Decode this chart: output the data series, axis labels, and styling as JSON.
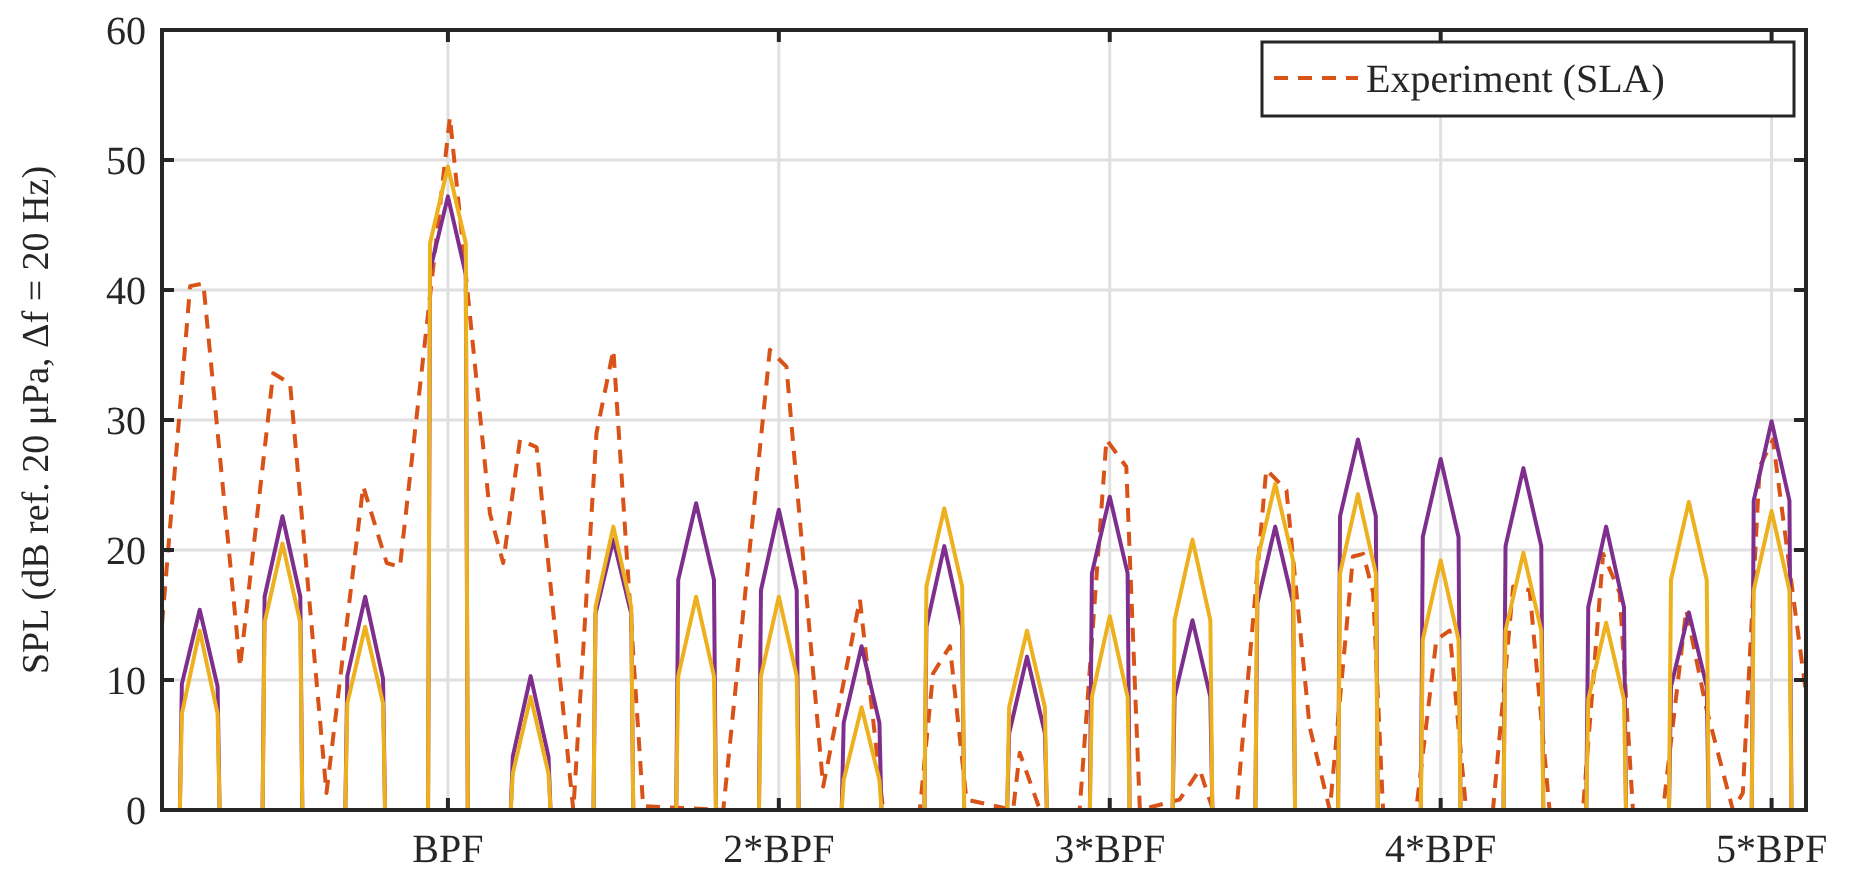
{
  "chart_data": {
    "type": "line",
    "ylabel": "SPL (dB ref. 20 μPa, Δf = 20 Hz)",
    "xlim": [
      0.136,
      5.104
    ],
    "ylim": [
      0,
      60
    ],
    "xticks": [
      {
        "value": 1,
        "label": "BPF"
      },
      {
        "value": 2,
        "label": "2*BPF"
      },
      {
        "value": 3,
        "label": "3*BPF"
      },
      {
        "value": 4,
        "label": "4*BPF"
      },
      {
        "value": 5,
        "label": "5*BPF"
      }
    ],
    "yticks": [
      0,
      10,
      20,
      30,
      40,
      50,
      60
    ],
    "grid": true,
    "legend": "top right",
    "series": [
      {
        "name": "Experiment (SLA)",
        "color": "#d95319",
        "line_style": "dashed",
        "x": [
          0.136,
          0.221,
          0.261,
          0.372,
          0.472,
          0.523,
          0.633,
          0.744,
          0.815,
          0.855,
          1.006,
          1.127,
          1.167,
          1.218,
          1.268,
          1.379,
          1.449,
          1.5,
          1.59,
          1.832,
          1.973,
          2.023,
          2.134,
          2.245,
          2.315,
          2.426,
          2.466,
          2.517,
          2.567,
          2.708,
          2.728,
          2.789,
          2.909,
          2.99,
          3.05,
          3.091,
          3.211,
          3.272,
          3.312,
          3.383,
          3.473,
          3.534,
          3.604,
          3.665,
          3.735,
          3.766,
          3.796,
          3.826,
          3.926,
          3.987,
          4.027,
          4.077,
          4.158,
          4.219,
          4.269,
          4.329,
          4.43,
          4.491,
          4.541,
          4.581,
          4.672,
          4.742,
          4.802,
          4.883,
          4.913,
          4.964,
          5.004,
          5.064,
          5.104
        ],
        "values": [
          14.3,
          40.3,
          40.5,
          11,
          33.6,
          32.8,
          1.3,
          24.9,
          19,
          18.7,
          53.3,
          22.8,
          19,
          28.5,
          27.9,
          0,
          29,
          35.4,
          0.3,
          0,
          35.4,
          34.1,
          1.8,
          16.2,
          0,
          0,
          10.5,
          12.6,
          0.8,
          0,
          4.4,
          0,
          0,
          28.5,
          26.4,
          0,
          0.8,
          3.1,
          0,
          0,
          26.2,
          24.6,
          6.4,
          0,
          19.5,
          19.7,
          16.7,
          0,
          0,
          13.1,
          13.8,
          0,
          0,
          17.2,
          16.9,
          0,
          0,
          19.7,
          16.7,
          0,
          0,
          15.4,
          7.9,
          0,
          1.3,
          26.4,
          28.5,
          16.7,
          9
        ]
      },
      {
        "color": "#7e2f8e",
        "line_style": "solid",
        "x": [
          0.19,
          0.196,
          0.25,
          0.304,
          0.31,
          0.44,
          0.446,
          0.5,
          0.554,
          0.56,
          0.69,
          0.696,
          0.75,
          0.804,
          0.81,
          0.94,
          0.946,
          1,
          1.054,
          1.06,
          1.19,
          1.196,
          1.25,
          1.304,
          1.31,
          1.44,
          1.446,
          1.5,
          1.554,
          1.56,
          1.69,
          1.696,
          1.75,
          1.804,
          1.81,
          1.94,
          1.946,
          2,
          2.054,
          2.06,
          2.19,
          2.196,
          2.25,
          2.304,
          2.31,
          2.44,
          2.446,
          2.5,
          2.554,
          2.56,
          2.69,
          2.696,
          2.75,
          2.804,
          2.81,
          2.94,
          2.946,
          3,
          3.054,
          3.06,
          3.19,
          3.196,
          3.25,
          3.304,
          3.31,
          3.44,
          3.446,
          3.5,
          3.554,
          3.56,
          3.69,
          3.696,
          3.75,
          3.804,
          3.81,
          3.94,
          3.946,
          4,
          4.054,
          4.06,
          4.19,
          4.196,
          4.25,
          4.304,
          4.31,
          4.44,
          4.446,
          4.5,
          4.554,
          4.56,
          4.69,
          4.696,
          4.75,
          4.804,
          4.81,
          4.94,
          4.946,
          5,
          5.054,
          5.06
        ],
        "values": [
          0,
          9.7,
          15.4,
          9.5,
          0,
          0,
          16.4,
          22.6,
          16.4,
          0,
          0,
          10.3,
          16.4,
          10.1,
          0,
          0,
          41.5,
          47.2,
          41.2,
          0,
          0,
          4.1,
          10.3,
          4.1,
          0,
          0,
          15.1,
          20.8,
          15.1,
          0,
          0,
          17.7,
          23.6,
          17.7,
          0,
          0,
          16.9,
          23.1,
          16.9,
          0,
          0,
          6.7,
          12.6,
          6.7,
          0,
          0,
          14.1,
          20.3,
          14.1,
          0,
          0,
          5.9,
          11.8,
          5.9,
          0,
          0,
          18.2,
          24.1,
          18.2,
          0,
          0,
          8.7,
          14.6,
          8.7,
          0,
          0,
          15.9,
          21.8,
          15.9,
          0,
          0,
          22.6,
          28.5,
          22.6,
          0,
          0,
          21,
          27,
          21,
          0,
          0,
          20.3,
          26.3,
          20.3,
          0,
          0,
          15.6,
          21.8,
          15.6,
          0,
          0,
          9.5,
          15.2,
          9.5,
          0,
          0,
          23.8,
          29.9,
          23.8,
          0
        ]
      },
      {
        "color": "#edb120",
        "line_style": "solid",
        "x": [
          0.19,
          0.196,
          0.25,
          0.304,
          0.31,
          0.44,
          0.446,
          0.5,
          0.554,
          0.56,
          0.69,
          0.696,
          0.75,
          0.804,
          0.81,
          0.94,
          0.946,
          1,
          1.054,
          1.06,
          1.19,
          1.196,
          1.25,
          1.304,
          1.31,
          1.44,
          1.446,
          1.5,
          1.554,
          1.56,
          1.69,
          1.696,
          1.75,
          1.804,
          1.81,
          1.94,
          1.946,
          2,
          2.054,
          2.06,
          2.19,
          2.196,
          2.25,
          2.304,
          2.31,
          2.44,
          2.446,
          2.5,
          2.554,
          2.56,
          2.69,
          2.696,
          2.75,
          2.804,
          2.81,
          2.94,
          2.946,
          3,
          3.054,
          3.06,
          3.19,
          3.196,
          3.25,
          3.304,
          3.31,
          3.44,
          3.446,
          3.5,
          3.554,
          3.56,
          3.69,
          3.696,
          3.75,
          3.804,
          3.81,
          3.94,
          3.946,
          4,
          4.054,
          4.06,
          4.19,
          4.196,
          4.25,
          4.304,
          4.31,
          4.44,
          4.446,
          4.5,
          4.554,
          4.56,
          4.69,
          4.696,
          4.75,
          4.804,
          4.81,
          4.94,
          4.946,
          5,
          5.054,
          5.06
        ],
        "values": [
          0,
          7.4,
          13.8,
          7.4,
          0,
          0,
          14.4,
          20.5,
          14.4,
          0,
          0,
          8.2,
          14.1,
          8.2,
          0,
          0,
          43.6,
          49.5,
          43.6,
          0,
          0,
          2.8,
          8.7,
          2.8,
          0,
          0,
          15.6,
          21.8,
          15.6,
          0,
          0,
          10.3,
          16.4,
          10.3,
          0,
          0,
          10.3,
          16.4,
          10.3,
          0,
          0,
          2.3,
          7.9,
          2.3,
          0,
          0,
          17.2,
          23.2,
          17.2,
          0,
          0,
          7.9,
          13.8,
          7.9,
          0,
          0,
          8.7,
          14.9,
          8.7,
          0,
          0,
          14.6,
          20.8,
          14.6,
          0,
          0,
          19.2,
          25.1,
          19.2,
          0,
          0,
          18.2,
          24.3,
          18.2,
          0,
          0,
          13.1,
          19.2,
          13.1,
          0,
          0,
          13.8,
          19.8,
          13.8,
          0,
          0,
          8.5,
          14.4,
          8.5,
          0,
          0,
          17.7,
          23.7,
          17.7,
          0,
          0,
          16.9,
          23,
          16.9,
          0
        ]
      }
    ]
  }
}
